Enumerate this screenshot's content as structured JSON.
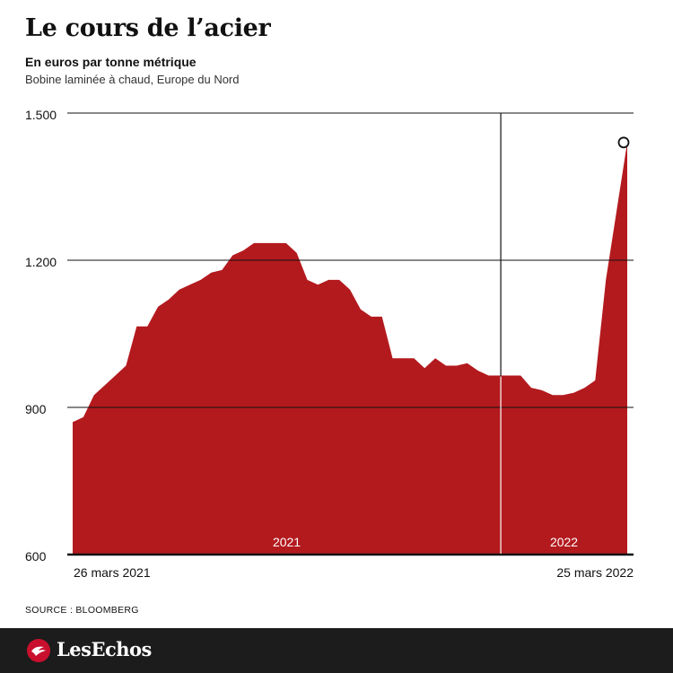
{
  "title": "Le cours de l’acier",
  "subtitle": "En euros par tonne métrique",
  "subtitle2": "Bobine laminée à chaud, Europe du Nord",
  "source": "SOURCE : BLOOMBERG",
  "brand": "LesEchos",
  "colors": {
    "area": "#b31a1e",
    "grid": "#111111",
    "footer": "#1c1c1c"
  },
  "chart_data": {
    "type": "area",
    "title": "Le cours de l’acier",
    "ylim": [
      600,
      1500
    ],
    "yticks": [
      600,
      900,
      1200,
      1500
    ],
    "ytick_labels": [
      "600",
      "900",
      "1.200",
      "1.500"
    ],
    "x_start_label": "26 mars 2021",
    "x_end_label": "25 mars 2022",
    "period_labels": [
      "2021",
      "2022"
    ],
    "grid": true,
    "final_point_marker": true,
    "x": [
      "2021-03-26",
      "2021-04-02",
      "2021-04-09",
      "2021-04-16",
      "2021-04-23",
      "2021-04-30",
      "2021-05-07",
      "2021-05-14",
      "2021-05-21",
      "2021-05-28",
      "2021-06-04",
      "2021-06-11",
      "2021-06-18",
      "2021-06-25",
      "2021-07-02",
      "2021-07-09",
      "2021-07-16",
      "2021-07-23",
      "2021-07-30",
      "2021-08-06",
      "2021-08-13",
      "2021-08-20",
      "2021-08-27",
      "2021-09-03",
      "2021-09-10",
      "2021-09-17",
      "2021-09-24",
      "2021-10-01",
      "2021-10-08",
      "2021-10-15",
      "2021-10-22",
      "2021-10-29",
      "2021-11-05",
      "2021-11-12",
      "2021-11-19",
      "2021-11-26",
      "2021-12-03",
      "2021-12-10",
      "2021-12-17",
      "2021-12-24",
      "2021-12-31",
      "2022-01-07",
      "2022-01-14",
      "2022-01-21",
      "2022-01-28",
      "2022-02-04",
      "2022-02-11",
      "2022-02-18",
      "2022-02-25",
      "2022-03-04",
      "2022-03-11",
      "2022-03-18",
      "2022-03-25"
    ],
    "values": [
      870,
      880,
      925,
      945,
      965,
      985,
      1065,
      1065,
      1105,
      1120,
      1140,
      1150,
      1160,
      1175,
      1180,
      1210,
      1220,
      1235,
      1235,
      1235,
      1235,
      1215,
      1160,
      1150,
      1160,
      1160,
      1140,
      1100,
      1085,
      1085,
      1000,
      1000,
      1000,
      980,
      1000,
      985,
      985,
      990,
      975,
      965,
      965,
      965,
      965,
      940,
      935,
      925,
      925,
      930,
      940,
      955,
      1160,
      1300,
      1440
    ]
  }
}
